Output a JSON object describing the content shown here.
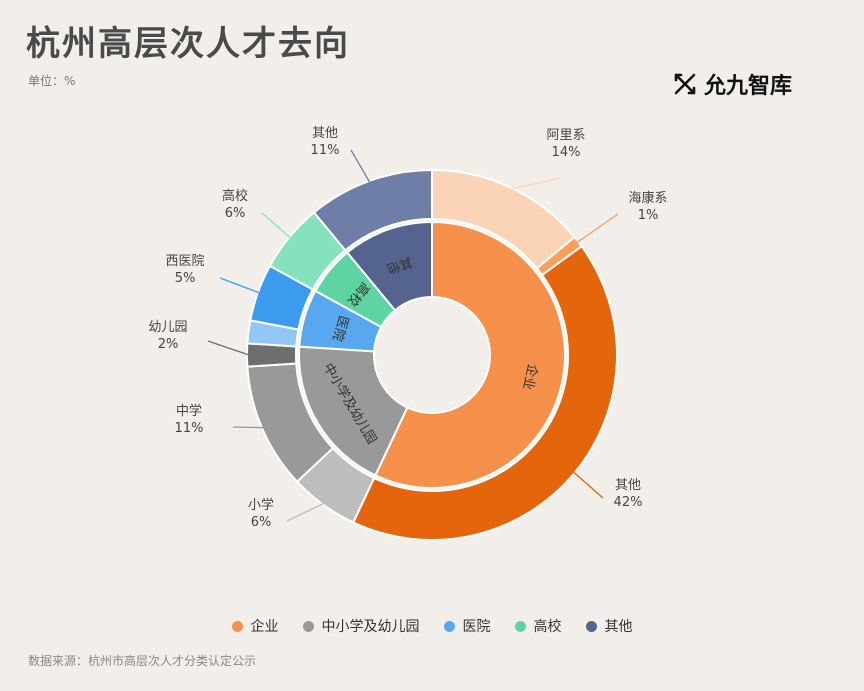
{
  "title": "杭州高层次人才去向",
  "unit": "单位：%",
  "logo_text": "允九智库",
  "source": "数据来源：杭州市高层次人才分类认定公示",
  "chart_data": {
    "type": "sunburst",
    "inner": [
      {
        "name": "企业",
        "value": 57,
        "color": "#f5914a"
      },
      {
        "name": "中小学及幼儿园",
        "value": 19,
        "color": "#999999"
      },
      {
        "name": "医院",
        "value": 7,
        "color": "#58a8f0"
      },
      {
        "name": "高校",
        "value": 6,
        "color": "#5ed4a2"
      },
      {
        "name": "其他",
        "value": 11,
        "color": "#55648e"
      }
    ],
    "inner_labels": [
      "企业",
      "中小学及幼儿园",
      "医院",
      "高校",
      "其他"
    ],
    "outer": [
      {
        "name": "阿里系",
        "value": 14,
        "value_label": "14%",
        "parent": "企业",
        "color": "#fbd4b7"
      },
      {
        "name": "海康系",
        "value": 1,
        "value_label": "1%",
        "parent": "企业",
        "color": "#f7a05e"
      },
      {
        "name": "其他",
        "value": 42,
        "value_label": "42%",
        "parent": "企业",
        "color": "#e5650d"
      },
      {
        "name": "小学",
        "value": 6,
        "value_label": "6%",
        "parent": "中小学及幼儿园",
        "color": "#bdbdbd"
      },
      {
        "name": "中学",
        "value": 11,
        "value_label": "11%",
        "parent": "中小学及幼儿园",
        "color": "#999999"
      },
      {
        "name": "幼儿园",
        "value": 2,
        "value_label": "2%",
        "parent": "中小学及幼儿园",
        "color": "#6e6e6e"
      },
      {
        "name": "",
        "value": 2,
        "value_label": "",
        "parent": "医院",
        "color": "#92c7f5"
      },
      {
        "name": "西医院",
        "value": 5,
        "value_label": "5%",
        "parent": "医院",
        "color": "#3d9bee"
      },
      {
        "name": "高校",
        "value": 6,
        "value_label": "6%",
        "parent": "高校",
        "color": "#86e2bd"
      },
      {
        "name": "其他",
        "value": 11,
        "value_label": "11%",
        "parent": "其他",
        "color": "#6e7ea6"
      }
    ],
    "legend": [
      {
        "name": "企业",
        "color": "#f5914a"
      },
      {
        "name": "中小学及幼儿园",
        "color": "#999999"
      },
      {
        "name": "医院",
        "color": "#58a8f0"
      },
      {
        "name": "高校",
        "color": "#5ed4a2"
      },
      {
        "name": "其他",
        "color": "#55648e"
      }
    ]
  }
}
